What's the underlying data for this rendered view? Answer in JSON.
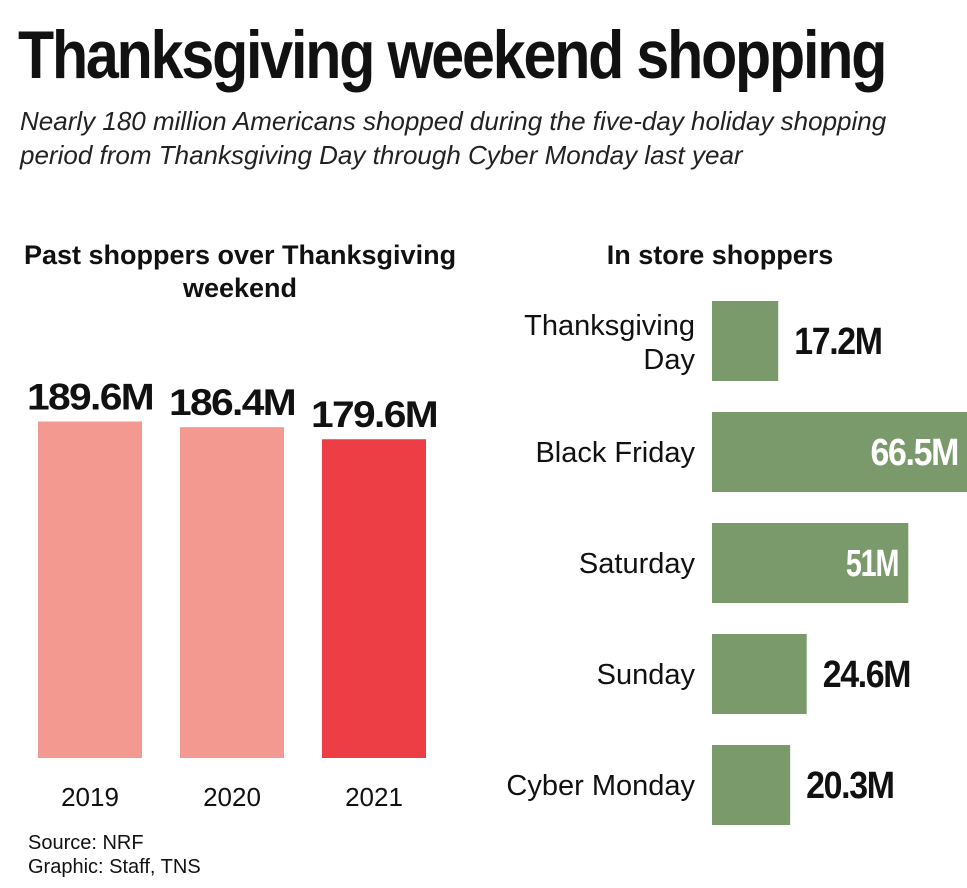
{
  "header": {
    "title": "Thanksgiving weekend shopping",
    "subtitle": "Nearly 180 million Americans shopped during the five-day holiday shopping period from Thanksgiving Day through Cyber Monday last year"
  },
  "footer": {
    "source": "Source: NRF",
    "credit": "Graphic: Staff, TNS"
  },
  "chart_data": [
    {
      "type": "bar",
      "title": "Past shoppers over Thanksgiving weekend",
      "orientation": "vertical",
      "categories": [
        "2019",
        "2020",
        "2021"
      ],
      "values": [
        189.6,
        186.4,
        179.6
      ],
      "value_labels": [
        "189.6M",
        "186.4M",
        "179.6M"
      ],
      "unit": "million shoppers",
      "colors": [
        "#f4998f",
        "#f4998f",
        "#ee3e45"
      ],
      "grid": false,
      "legend": "none"
    },
    {
      "type": "bar",
      "title": "In store shoppers",
      "orientation": "horizontal",
      "categories": [
        [
          "Thanksgiving",
          "Day"
        ],
        [
          "Black Friday"
        ],
        [
          "Saturday"
        ],
        [
          "Sunday"
        ],
        [
          "Cyber Monday"
        ]
      ],
      "values": [
        17.2,
        66.5,
        51,
        24.6,
        20.3
      ],
      "value_labels": [
        "17.2M",
        "66.5M",
        "51M",
        "24.6M",
        "20.3M"
      ],
      "label_inside": [
        false,
        true,
        true,
        false,
        false
      ],
      "unit": "million shoppers",
      "color": "#7b9a6c",
      "grid": false,
      "legend": "none"
    }
  ]
}
